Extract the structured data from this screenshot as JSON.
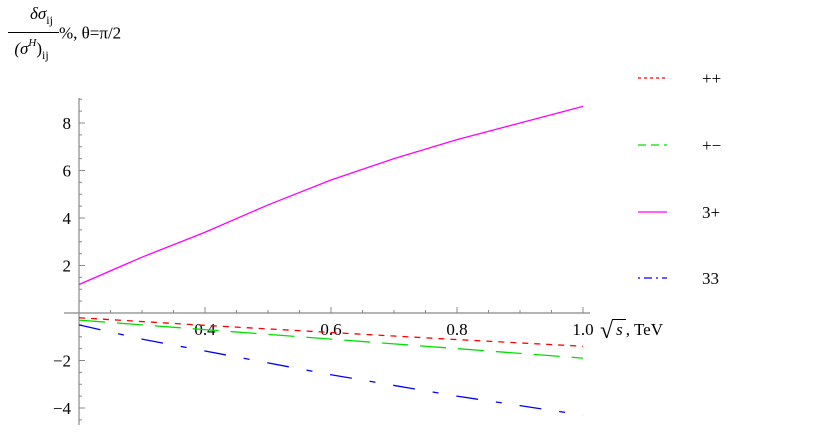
{
  "chart_data": {
    "type": "line",
    "title": "",
    "ylabel": {
      "numerator": "δσ",
      "numerator_sub": "ij",
      "denominator": "(σ",
      "denominator_sup": "H",
      "denominator_close": ")",
      "denominator_sub": "ij",
      "suffix": "%, θ=π/2"
    },
    "xlabel": {
      "sqrt_symbol": "√",
      "sqrt_arg": "s",
      "suffix": ", TeV"
    },
    "xlim": [
      0.2,
      1.0
    ],
    "ylim": [
      -4.6,
      9.0
    ],
    "x_ticks": [
      "0.4",
      "0.6",
      "0.8",
      "1.0"
    ],
    "y_ticks": [
      "8",
      "6",
      "4",
      "2",
      "−2",
      "−4"
    ],
    "grid": false,
    "legend_position": "right",
    "x": [
      0.2,
      0.3,
      0.4,
      0.5,
      0.6,
      0.7,
      0.8,
      0.9,
      1.0
    ],
    "series": [
      {
        "name": "++",
        "color": "#ff0000",
        "dash": "short-dash",
        "values": [
          -0.2,
          -0.36,
          -0.52,
          -0.67,
          -0.82,
          -0.97,
          -1.12,
          -1.26,
          -1.4
        ]
      },
      {
        "name": "+−",
        "color": "#00e000",
        "dash": "long-dash",
        "values": [
          -0.3,
          -0.5,
          -0.7,
          -0.9,
          -1.1,
          -1.3,
          -1.5,
          -1.7,
          -1.9
        ]
      },
      {
        "name": "3+",
        "color": "#ff00ff",
        "dash": "solid",
        "values": [
          1.2,
          2.35,
          3.4,
          4.55,
          5.6,
          6.5,
          7.3,
          8.0,
          8.7
        ]
      },
      {
        "name": "33",
        "color": "#0000ff",
        "dash": "dash-dot",
        "values": [
          -0.5,
          -1.1,
          -1.6,
          -2.1,
          -2.6,
          -3.05,
          -3.5,
          -3.9,
          -4.3
        ]
      }
    ]
  },
  "legend": [
    {
      "label": "++",
      "color": "#ff0000",
      "dash": "3,3"
    },
    {
      "label": "+−",
      "color": "#00e000",
      "dash": "8,5"
    },
    {
      "label": "3+",
      "color": "#ff00ff",
      "dash": ""
    },
    {
      "label": "33",
      "color": "#0000ff",
      "dash": "2,4,8,4"
    }
  ]
}
